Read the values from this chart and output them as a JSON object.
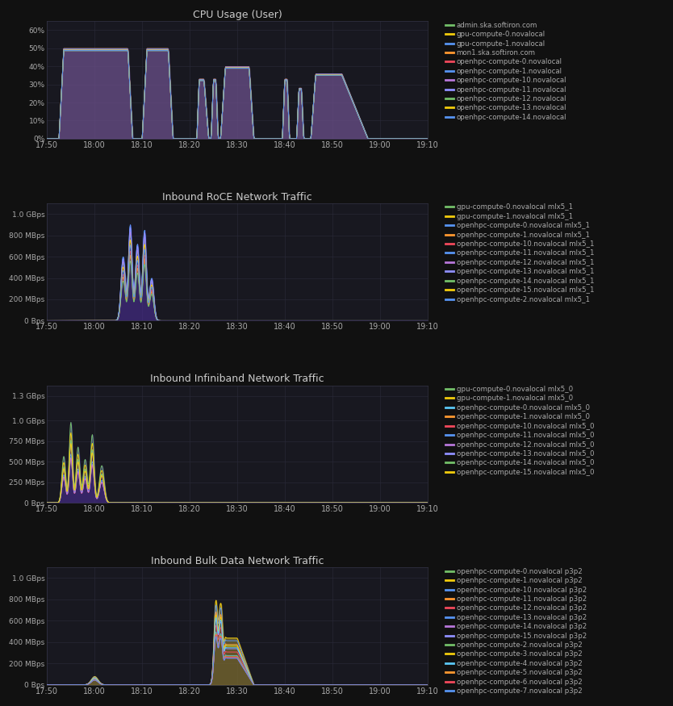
{
  "bg_color": "#111111",
  "panel_bg": "#181820",
  "text_color": "#aaaaaa",
  "grid_color": "#2a2a3a",
  "title_color": "#cccccc",
  "time_ticks": [
    "17:50",
    "18:00",
    "18:10",
    "18:20",
    "18:30",
    "18:40",
    "18:50",
    "19:00",
    "19:10"
  ],
  "chart1": {
    "title": "CPU Usage (User)",
    "ylabel_ticks": [
      "0%",
      "10%",
      "20%",
      "30%",
      "40%",
      "50%",
      "60%"
    ],
    "ytick_vals": [
      0,
      10,
      20,
      30,
      40,
      50,
      60
    ],
    "ylim": [
      0,
      65
    ],
    "fill_color": "#6b4f8a",
    "fill_alpha": 0.75,
    "legend": [
      {
        "label": "admin.ska.softiron.com",
        "color": "#73bf69"
      },
      {
        "label": "gpu-compute-0.novalocal",
        "color": "#f2cc0c"
      },
      {
        "label": "gpu-compute-1.novalocal",
        "color": "#5794f2"
      },
      {
        "label": "mon1.ska.softiron.com",
        "color": "#ff9830"
      },
      {
        "label": "openhpc-compute-0.novalocal",
        "color": "#f2495c"
      },
      {
        "label": "openhpc-compute-1.novalocal",
        "color": "#5794f2"
      },
      {
        "label": "openhpc-compute-10.novalocal",
        "color": "#b877d9"
      },
      {
        "label": "openhpc-compute-11.novalocal",
        "color": "#8f8fff"
      },
      {
        "label": "openhpc-compute-12.novalocal",
        "color": "#73bf69"
      },
      {
        "label": "openhpc-compute-13.novalocal",
        "color": "#f2cc0c"
      },
      {
        "label": "openhpc-compute-14.novalocal",
        "color": "#5794f2"
      }
    ]
  },
  "chart2": {
    "title": "Inbound RoCE Network Traffic",
    "ylabel_ticks": [
      "0 Bps",
      "200 MBps",
      "400 MBps",
      "600 MBps",
      "800 MBps",
      "1.0 GBps"
    ],
    "ytick_vals": [
      0,
      200,
      400,
      600,
      800,
      1000
    ],
    "ylim": [
      0,
      1100
    ],
    "fill_color": "#5030a0",
    "fill_alpha": 0.55,
    "legend": [
      {
        "label": "gpu-compute-0.novalocal mlx5_1",
        "color": "#73bf69"
      },
      {
        "label": "gpu-compute-1.novalocal mlx5_1",
        "color": "#f2cc0c"
      },
      {
        "label": "openhpc-compute-0.novalocal mlx5_1",
        "color": "#5794f2"
      },
      {
        "label": "openhpc-compute-1.novalocal mlx5_1",
        "color": "#ff9830"
      },
      {
        "label": "openhpc-compute-10.novalocal mlx5_1",
        "color": "#f2495c"
      },
      {
        "label": "openhpc-compute-11.novalocal mlx5_1",
        "color": "#5794f2"
      },
      {
        "label": "openhpc-compute-12.novalocal mlx5_1",
        "color": "#b877d9"
      },
      {
        "label": "openhpc-compute-13.novalocal mlx5_1",
        "color": "#8f8fff"
      },
      {
        "label": "openhpc-compute-14.novalocal mlx5_1",
        "color": "#73bf69"
      },
      {
        "label": "openhpc-compute-15.novalocal mlx5_1",
        "color": "#f2cc0c"
      },
      {
        "label": "openhpc-compute-2.novalocal mlx5_1",
        "color": "#5794f2"
      }
    ]
  },
  "chart3": {
    "title": "Inbound Infiniband Network Traffic",
    "ylabel_ticks": [
      "0 Bps",
      "250 MBps",
      "500 MBps",
      "750 MBps",
      "1.0 GBps",
      "1.3 GBps"
    ],
    "ytick_vals": [
      0,
      250,
      500,
      750,
      1000,
      1300
    ],
    "ylim": [
      0,
      1430
    ],
    "fill_color": "#5030a0",
    "fill_alpha": 0.55,
    "legend": [
      {
        "label": "gpu-compute-0.novalocal mlx5_0",
        "color": "#73bf69"
      },
      {
        "label": "gpu-compute-1.novalocal mlx5_0",
        "color": "#f2cc0c"
      },
      {
        "label": "openhpc-compute-0.novalocal mlx5_0",
        "color": "#5bc8f5"
      },
      {
        "label": "openhpc-compute-1.novalocal mlx5_0",
        "color": "#ff9830"
      },
      {
        "label": "openhpc-compute-10.novalocal mlx5_0",
        "color": "#f2495c"
      },
      {
        "label": "openhpc-compute-11.novalocal mlx5_0",
        "color": "#5794f2"
      },
      {
        "label": "openhpc-compute-12.novalocal mlx5_0",
        "color": "#b877d9"
      },
      {
        "label": "openhpc-compute-13.novalocal mlx5_0",
        "color": "#8f8fff"
      },
      {
        "label": "openhpc-compute-14.novalocal mlx5_0",
        "color": "#73bf69"
      },
      {
        "label": "openhpc-compute-15.novalocal mlx5_0",
        "color": "#f2cc0c"
      }
    ]
  },
  "chart4": {
    "title": "Inbound Bulk Data Network Traffic",
    "ylabel_ticks": [
      "0 Bps",
      "200 MBps",
      "400 MBps",
      "600 MBps",
      "800 MBps",
      "1.0 GBps"
    ],
    "ytick_vals": [
      0,
      200,
      400,
      600,
      800,
      1000
    ],
    "ylim": [
      0,
      1100
    ],
    "fill_color": "#7a6a30",
    "fill_alpha": 0.75,
    "legend": [
      {
        "label": "openhpc-compute-0.novalocal p3p2",
        "color": "#73bf69"
      },
      {
        "label": "openhpc-compute-1.novalocal p3p2",
        "color": "#f2cc0c"
      },
      {
        "label": "openhpc-compute-10.novalocal p3p2",
        "color": "#5794f2"
      },
      {
        "label": "openhpc-compute-11.novalocal p3p2",
        "color": "#ff9830"
      },
      {
        "label": "openhpc-compute-12.novalocal p3p2",
        "color": "#f2495c"
      },
      {
        "label": "openhpc-compute-13.novalocal p3p2",
        "color": "#5794f2"
      },
      {
        "label": "openhpc-compute-14.novalocal p3p2",
        "color": "#b877d9"
      },
      {
        "label": "openhpc-compute-15.novalocal p3p2",
        "color": "#8f8fff"
      },
      {
        "label": "openhpc-compute-2.novalocal p3p2",
        "color": "#73bf69"
      },
      {
        "label": "openhpc-compute-3.novalocal p3p2",
        "color": "#f2cc0c"
      },
      {
        "label": "openhpc-compute-4.novalocal p3p2",
        "color": "#5bc8f5"
      },
      {
        "label": "openhpc-compute-5.novalocal p3p2",
        "color": "#ff9830"
      },
      {
        "label": "openhpc-compute-6.novalocal p3p2",
        "color": "#f2495c"
      },
      {
        "label": "openhpc-compute-7.novalocal p3p2",
        "color": "#5794f2"
      }
    ]
  }
}
